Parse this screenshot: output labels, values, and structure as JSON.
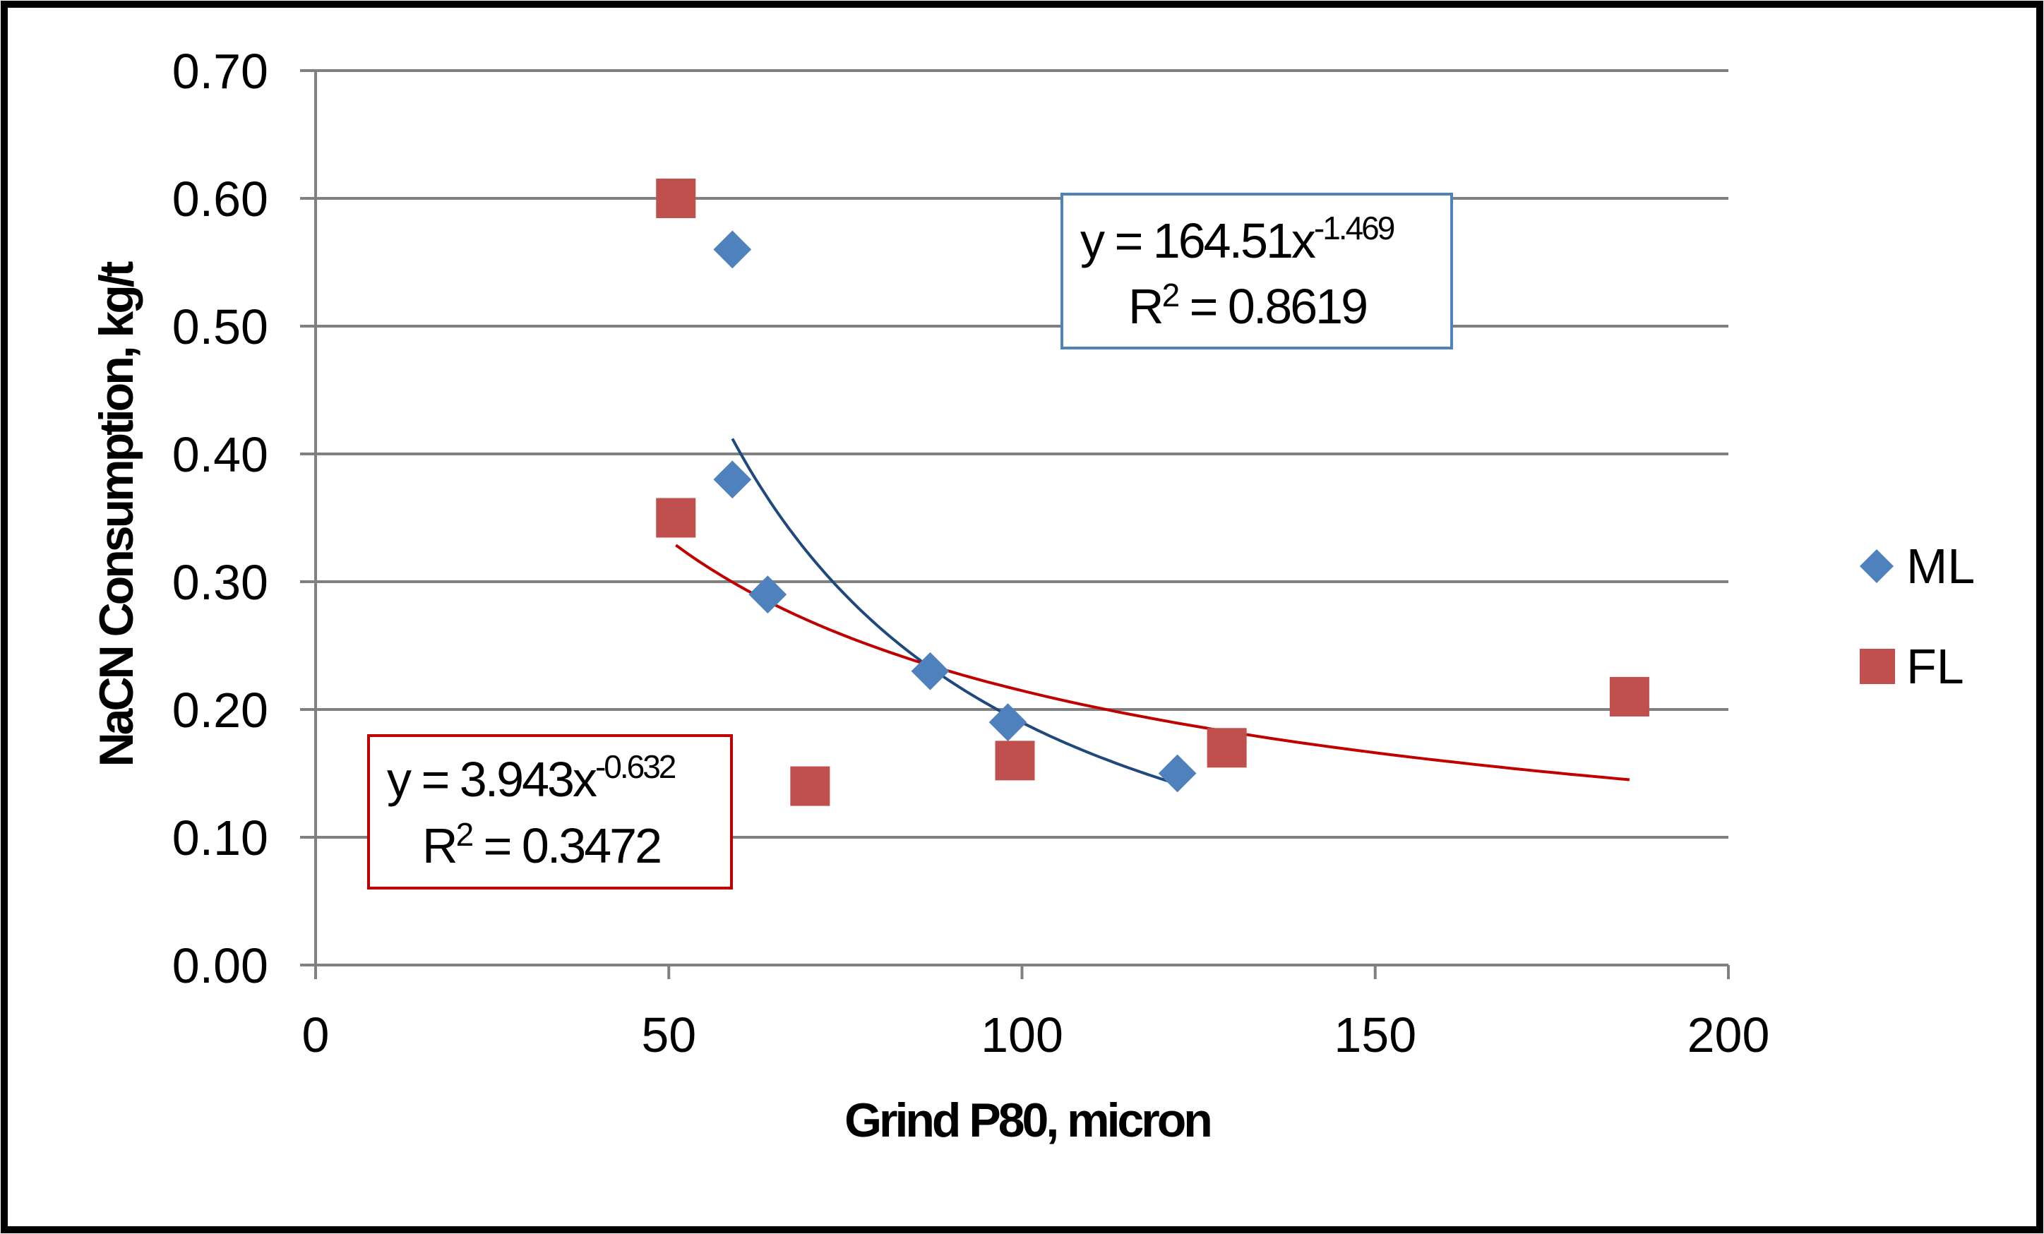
{
  "chart_data": {
    "type": "scatter",
    "title": "",
    "xlabel": "Grind P80, micron",
    "ylabel": "NaCN Consumption, kg/t",
    "xlim": [
      0,
      200
    ],
    "ylim": [
      0,
      0.7
    ],
    "x_ticks": [
      "0",
      "50",
      "100",
      "150",
      "200"
    ],
    "y_ticks": [
      "0.00",
      "0.10",
      "0.20",
      "0.30",
      "0.40",
      "0.50",
      "0.60",
      "0.70"
    ],
    "grid": "horizontal",
    "legend_position": "right",
    "series": [
      {
        "name": "ML",
        "marker": "diamond",
        "color": "#4f81bd",
        "x": [
          59,
          59,
          64,
          87,
          98,
          122
        ],
        "y": [
          0.56,
          0.38,
          0.29,
          0.23,
          0.19,
          0.15
        ],
        "trendline": {
          "type": "power",
          "coef": 164.51,
          "exponent": -1.469,
          "x_range": [
            59,
            122
          ],
          "color": "#1f497d",
          "equation_text": "y = 164.51x",
          "exponent_text": "-1.469",
          "r2_prefix": "R",
          "r2_sup": "2",
          "r2_text": " = 0.8619"
        }
      },
      {
        "name": "FL",
        "marker": "square",
        "color": "#c0504d",
        "x": [
          51,
          51,
          70,
          99,
          129,
          186
        ],
        "y": [
          0.6,
          0.35,
          0.14,
          0.16,
          0.17,
          0.21
        ],
        "trendline": {
          "type": "power",
          "coef": 3.943,
          "exponent": -0.632,
          "x_range": [
            51,
            186
          ],
          "color": "#c00000",
          "equation_text": "y = 3.943x",
          "exponent_text": "-0.632",
          "r2_prefix": "R",
          "r2_sup": "2",
          "r2_text": " = 0.3472"
        }
      }
    ]
  }
}
